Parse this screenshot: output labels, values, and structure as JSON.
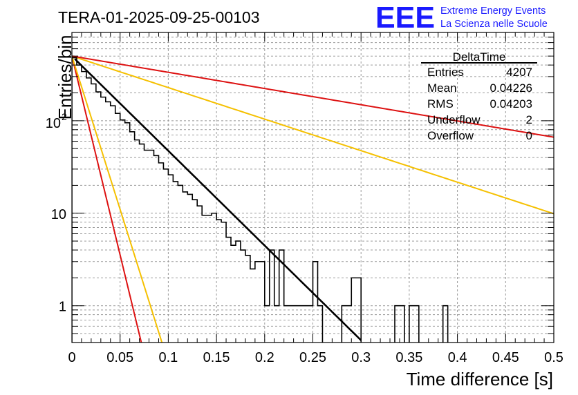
{
  "header": {
    "run_title": "TERA-01-2025-09-25-00103",
    "logo_text": "EEE",
    "logo_line1": "Extreme Energy Events",
    "logo_line2": "La Scienza nelle Scuole"
  },
  "stats_box": {
    "title": "DeltaTime",
    "rows": [
      {
        "label": "Entries",
        "value": "4207"
      },
      {
        "label": "Mean",
        "value": "0.04226"
      },
      {
        "label": "RMS",
        "value": "0.04203"
      },
      {
        "label": "Underflow",
        "value": "2"
      },
      {
        "label": "Overflow",
        "value": "0"
      }
    ]
  },
  "colors": {
    "histogram": "#000000",
    "fit_line": "#000000",
    "red_lines": "#dd1111",
    "orange_lines": "#f5c000",
    "logo_blue": "#1a1aff",
    "grid": "#999999"
  },
  "chart_data": {
    "type": "histogram",
    "title": "",
    "xlabel": "Time difference [s]",
    "ylabel": "Entries/bin",
    "xlim": [
      0,
      0.5
    ],
    "ylim": [
      0.4,
      900
    ],
    "yscale": "log",
    "grid": true,
    "bin_width": 0.005,
    "x_ticks": [
      "0",
      "0.05",
      "0.1",
      "0.15",
      "0.2",
      "0.25",
      "0.3",
      "0.35",
      "0.4",
      "0.45",
      "0.5"
    ],
    "x_tick_values": [
      0,
      0.05,
      0.1,
      0.15,
      0.2,
      0.25,
      0.3,
      0.35,
      0.4,
      0.45,
      0.5
    ],
    "y_ticks": [
      {
        "value": 1,
        "base": "1",
        "exp": ""
      },
      {
        "value": 10,
        "base": "10",
        "exp": ""
      },
      {
        "value": 100,
        "base": "10",
        "exp": "2"
      }
    ],
    "histogram_bins": [
      480,
      400,
      340,
      290,
      250,
      205,
      180,
      160,
      145,
      120,
      102,
      95,
      76,
      62,
      56,
      48,
      48,
      42,
      35,
      30,
      26,
      22,
      20,
      17,
      16,
      14,
      12,
      9.5,
      9.5,
      10,
      8.5,
      8,
      5.5,
      4.5,
      5,
      4,
      3.5,
      2.5,
      3,
      3,
      1,
      4,
      1,
      4,
      1,
      1,
      1,
      1,
      1,
      1,
      3,
      1,
      0,
      0,
      0,
      0,
      1,
      1,
      2,
      2,
      0,
      0,
      0,
      0,
      0,
      0,
      0,
      1,
      1,
      0,
      1,
      1,
      0,
      0,
      0,
      0,
      0,
      1,
      0,
      0,
      0,
      0,
      0,
      0,
      0,
      0,
      0,
      0,
      0,
      0,
      0,
      0,
      0,
      0,
      0,
      0,
      0,
      0,
      0,
      0
    ],
    "fit_curve": {
      "name": "exponential fit",
      "A": 500,
      "tau": 0.0424,
      "x_range": [
        0.003,
        0.3
      ]
    },
    "reference_curves": [
      {
        "name": "red-steep",
        "color": "red",
        "A": 500,
        "tau": 0.0101
      },
      {
        "name": "orange-steep",
        "color": "orange",
        "A": 500,
        "tau": 0.0131
      },
      {
        "name": "orange-shallow",
        "color": "orange",
        "A": 500,
        "tau": 0.1274
      },
      {
        "name": "red-shallow",
        "color": "red",
        "A": 500,
        "tau": 0.2476
      }
    ]
  }
}
